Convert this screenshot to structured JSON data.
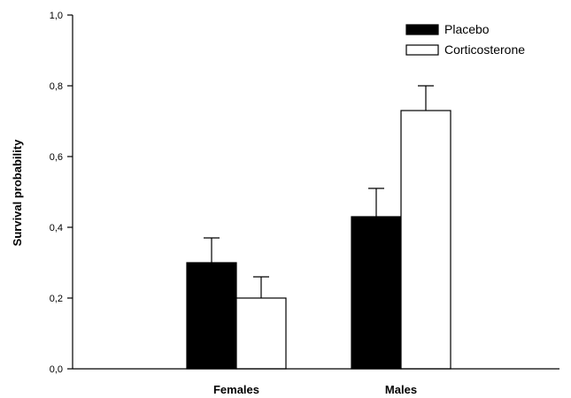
{
  "chart_data": {
    "type": "bar",
    "title": "",
    "xlabel": "",
    "ylabel": "Survival probability",
    "ylim": [
      0,
      1.0
    ],
    "yticks": [
      "0,0",
      "0,2",
      "0,4",
      "0,6",
      "0,8",
      "1,0"
    ],
    "categories": [
      "Females",
      "Males"
    ],
    "series": [
      {
        "name": "Placebo",
        "values": [
          0.3,
          0.43
        ],
        "errors": [
          0.07,
          0.08
        ],
        "fill": "#000000"
      },
      {
        "name": "Corticosterone",
        "values": [
          0.2,
          0.73
        ],
        "errors": [
          0.06,
          0.07
        ],
        "fill": "#ffffff"
      }
    ],
    "legend_position": "top-right",
    "grid": false
  }
}
